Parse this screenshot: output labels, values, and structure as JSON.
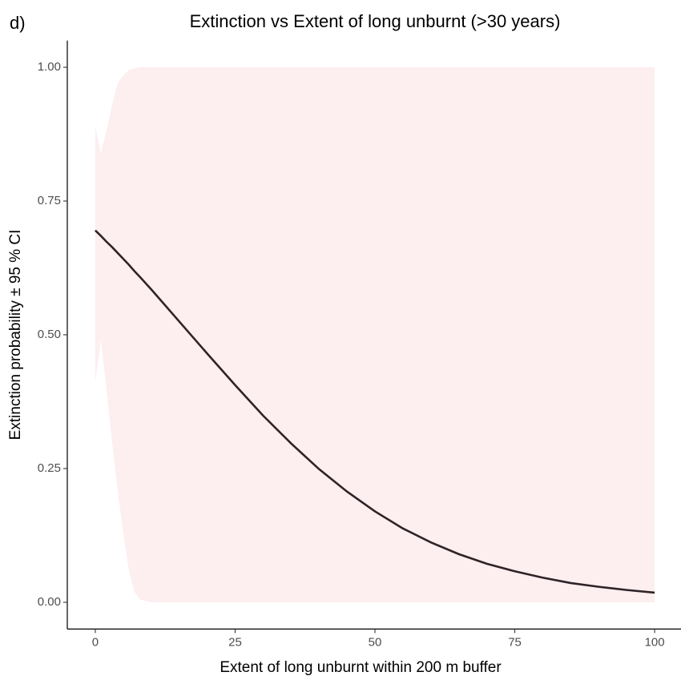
{
  "chart_data": {
    "type": "line",
    "tag": "d)",
    "title": "Extinction vs Extent of long unburnt (>30 years)",
    "x_label": "Extent of long unburnt within 200 m buffer",
    "y_label": "Extinction probability ± 95 % CI",
    "x": [
      0,
      1,
      2,
      3,
      4,
      5,
      6,
      7,
      8,
      10,
      15,
      20,
      25,
      30,
      35,
      40,
      45,
      50,
      55,
      60,
      65,
      70,
      75,
      80,
      85,
      90,
      95,
      100
    ],
    "series": [
      {
        "color": "#2e2327",
        "band_color": "#fdeef0",
        "values": [
          0.695,
          0.685,
          0.674,
          0.664,
          0.653,
          0.642,
          0.631,
          0.619,
          0.608,
          0.585,
          0.525,
          0.465,
          0.406,
          0.349,
          0.297,
          0.249,
          0.207,
          0.17,
          0.138,
          0.112,
          0.09,
          0.072,
          0.058,
          0.046,
          0.036,
          0.029,
          0.023,
          0.018
        ],
        "lower": [
          0.41,
          0.49,
          0.4,
          0.3,
          0.21,
          0.13,
          0.06,
          0.02,
          0.005,
          0,
          0,
          0,
          0,
          0,
          0,
          0,
          0,
          0,
          0,
          0,
          0,
          0,
          0,
          0,
          0,
          0,
          0,
          0
        ],
        "upper": [
          0.89,
          0.84,
          0.88,
          0.93,
          0.97,
          0.985,
          0.995,
          0.998,
          1,
          1,
          1,
          1,
          1,
          1,
          1,
          1,
          1,
          1,
          1,
          1,
          1,
          1,
          1,
          1,
          1,
          1,
          1,
          1
        ]
      }
    ],
    "xlim": [
      -5,
      105
    ],
    "ylim": [
      -0.05,
      1.05
    ],
    "xticks": [
      0,
      25,
      50,
      75,
      100
    ],
    "yticks": [
      {
        "value": 0,
        "label": "0.00"
      },
      {
        "value": 0.25,
        "label": "0.25"
      },
      {
        "value": 0.5,
        "label": "0.50"
      },
      {
        "value": 0.75,
        "label": "0.75"
      },
      {
        "value": 1,
        "label": "1.00"
      }
    ],
    "grid": false
  }
}
